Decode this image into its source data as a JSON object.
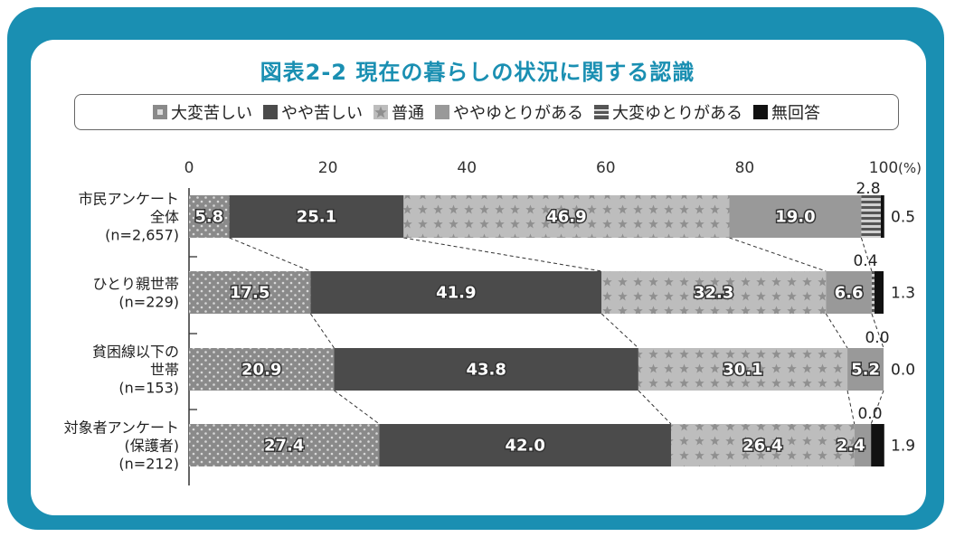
{
  "title": "図表2-2 現在の暮らしの状況に関する認識",
  "colors": {
    "frame": "#1a8fb2",
    "title": "#1a8fb2"
  },
  "chart_data": {
    "type": "bar",
    "orientation": "horizontal",
    "stacked": true,
    "unit": "(%)",
    "xlim": [
      0,
      100
    ],
    "xticks": [
      "0",
      "20",
      "40",
      "60",
      "80",
      "100"
    ],
    "categories": [
      [
        "市民アンケート",
        "全体",
        "(n=2,657)"
      ],
      [
        "ひとり親世帯",
        "(n=229)"
      ],
      [
        "貧困線以下の",
        "世帯",
        "(n=153)"
      ],
      [
        "対象者アンケート",
        "(保護者)",
        "(n=212)"
      ]
    ],
    "series": [
      {
        "name": "大変苦しい",
        "pattern": "dots",
        "color": "#8a8a8a",
        "values": [
          5.8,
          17.5,
          20.9,
          27.4
        ]
      },
      {
        "name": "やや苦しい",
        "pattern": "solid",
        "color": "#4b4b4b",
        "values": [
          25.1,
          41.9,
          43.8,
          42.0
        ]
      },
      {
        "name": "普通",
        "pattern": "stars",
        "color": "#bdbdbd",
        "values": [
          46.9,
          32.3,
          30.1,
          26.4
        ]
      },
      {
        "name": "ややゆとりがある",
        "pattern": "solid",
        "color": "#999999",
        "values": [
          19.0,
          6.6,
          5.2,
          2.4
        ]
      },
      {
        "name": "大変ゆとりがある",
        "pattern": "stripes",
        "color": "#555555",
        "values": [
          2.8,
          0.4,
          0.0,
          0.0
        ]
      },
      {
        "name": "無回答",
        "pattern": "solid",
        "color": "#111111",
        "values": [
          0.5,
          1.3,
          0.0,
          1.9
        ]
      }
    ],
    "labels": [
      [
        "5.8",
        "25.1",
        "46.9",
        "19.0",
        "2.8",
        "0.5"
      ],
      [
        "17.5",
        "41.9",
        "32.3",
        "6.6",
        "0.4",
        "1.3"
      ],
      [
        "20.9",
        "43.8",
        "30.1",
        "5.2",
        "0.0",
        "0.0"
      ],
      [
        "27.4",
        "42.0",
        "26.4",
        "2.4",
        "0.0",
        "1.9"
      ]
    ],
    "connector_lines": true,
    "grid": false
  }
}
